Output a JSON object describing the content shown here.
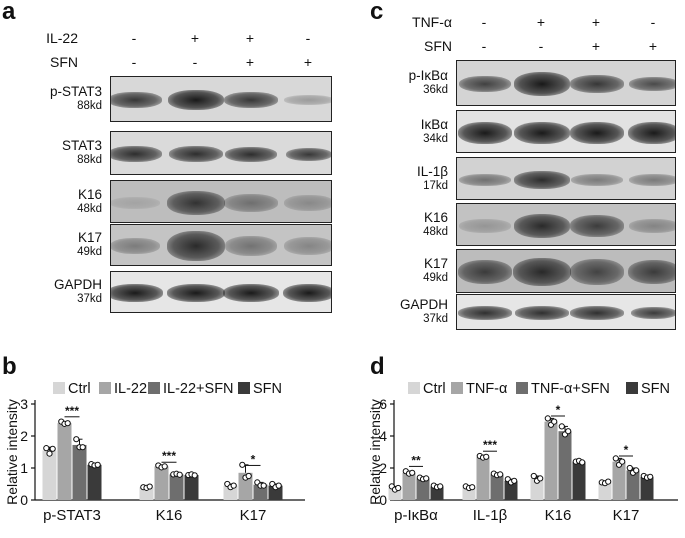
{
  "figure": {
    "panels": {
      "a": {
        "letter": "a",
        "treatments": [
          {
            "label": "IL-22",
            "signs": [
              "-",
              "+",
              "+",
              "-"
            ]
          },
          {
            "label": "SFN",
            "signs": [
              "-",
              "-",
              "+",
              "+"
            ]
          }
        ],
        "blots": [
          {
            "name": "p-STAT3",
            "kd": "88kd"
          },
          {
            "name": "STAT3",
            "kd": "88kd"
          },
          {
            "name": "K16",
            "kd": "48kd"
          },
          {
            "name": "K17",
            "kd": "49kd"
          },
          {
            "name": "GAPDH",
            "kd": "37kd"
          }
        ]
      },
      "c": {
        "letter": "c",
        "treatments": [
          {
            "label": "TNF-α",
            "signs": [
              "-",
              "+",
              "+",
              "-"
            ]
          },
          {
            "label": "SFN",
            "signs": [
              "-",
              "-",
              "+",
              "+"
            ]
          }
        ],
        "blots": [
          {
            "name": "p-IκBα",
            "kd": "36kd"
          },
          {
            "name": "IκBα",
            "kd": "34kd"
          },
          {
            "name": "IL-1β",
            "kd": "17kd"
          },
          {
            "name": "K16",
            "kd": "48kd"
          },
          {
            "name": "K17",
            "kd": "49kd"
          },
          {
            "name": "GAPDH",
            "kd": "37kd"
          }
        ]
      },
      "b": {
        "letter": "b"
      },
      "d": {
        "letter": "d"
      }
    },
    "colors": {
      "ctrl": "#d6d6d6",
      "treat": "#a6a6a6",
      "combo": "#6e6e6e",
      "sfn": "#3a3a3a"
    }
  },
  "chart_data": [
    {
      "panel": "b",
      "type": "bar",
      "ylabel": "Relative intensity",
      "ylim": [
        0,
        3
      ],
      "yticks": [
        "0",
        "1",
        "2",
        "3"
      ],
      "legend": [
        "Ctrl",
        "IL-22",
        "IL-22+SFN",
        "SFN"
      ],
      "legend_position": "top",
      "categories": [
        "p-STAT3",
        "K16",
        "K17"
      ],
      "series": [
        {
          "name": "Ctrl",
          "values": [
            1.55,
            0.4,
            0.45
          ]
        },
        {
          "name": "IL-22",
          "values": [
            2.4,
            1.05,
            0.85
          ]
        },
        {
          "name": "IL-22+SFN",
          "values": [
            1.72,
            0.8,
            0.48
          ]
        },
        {
          "name": "SFN",
          "values": [
            1.1,
            0.78,
            0.45
          ]
        }
      ],
      "points": [
        [
          [
            1.62,
            1.45,
            1.6
          ],
          [
            2.45,
            2.38,
            2.4
          ],
          [
            1.9,
            1.65,
            1.65
          ],
          [
            1.12,
            1.08,
            1.1
          ]
        ],
        [
          [
            0.4,
            0.38,
            0.42
          ],
          [
            1.08,
            1.02,
            1.05
          ],
          [
            0.8,
            0.82,
            0.79
          ],
          [
            0.78,
            0.8,
            0.77
          ]
        ],
        [
          [
            0.5,
            0.4,
            0.45
          ],
          [
            1.1,
            0.7,
            0.75
          ],
          [
            0.55,
            0.45,
            0.45
          ],
          [
            0.5,
            0.4,
            0.45
          ]
        ]
      ],
      "significance": [
        {
          "category": "p-STAT3",
          "label": "***",
          "y": 2.6
        },
        {
          "category": "K16",
          "label": "***",
          "y": 1.18
        },
        {
          "category": "K17",
          "label": "*",
          "y": 1.08
        }
      ]
    },
    {
      "panel": "d",
      "type": "bar",
      "ylabel": "Relative intensity",
      "ylim": [
        0,
        6
      ],
      "yticks": [
        "0",
        "2",
        "4",
        "6"
      ],
      "legend": [
        "Ctrl",
        "TNF-α",
        "TNF-α+SFN",
        "SFN"
      ],
      "legend_position": "top",
      "categories": [
        "p-IκBα",
        "IL-1β",
        "K16",
        "K17"
      ],
      "series": [
        {
          "name": "Ctrl",
          "values": [
            0.75,
            0.8,
            1.35,
            1.1
          ]
        },
        {
          "name": "TNF-α",
          "values": [
            1.7,
            2.7,
            4.9,
            2.4
          ]
        },
        {
          "name": "TNF-α+SFN",
          "values": [
            1.35,
            1.6,
            4.3,
            1.85
          ]
        },
        {
          "name": "SFN",
          "values": [
            0.85,
            1.2,
            2.4,
            1.45
          ]
        }
      ],
      "points": [
        [
          [
            0.85,
            0.65,
            0.75
          ],
          [
            1.8,
            1.65,
            1.7
          ],
          [
            1.4,
            1.3,
            1.35
          ],
          [
            0.9,
            0.8,
            0.85
          ]
        ],
        [
          [
            0.85,
            0.75,
            0.8
          ],
          [
            2.75,
            2.65,
            2.7
          ],
          [
            1.65,
            1.55,
            1.6
          ],
          [
            1.3,
            1.1,
            1.2
          ]
        ],
        [
          [
            1.5,
            1.2,
            1.35
          ],
          [
            5.1,
            4.7,
            4.9
          ],
          [
            4.6,
            4.1,
            4.3
          ],
          [
            2.4,
            2.45,
            2.35
          ]
        ],
        [
          [
            1.1,
            1.05,
            1.15
          ],
          [
            2.6,
            2.2,
            2.4
          ],
          [
            2.0,
            1.7,
            1.85
          ],
          [
            1.5,
            1.4,
            1.45
          ]
        ]
      ],
      "significance": [
        {
          "category": "p-IκBα",
          "label": "**",
          "y": 2.1
        },
        {
          "category": "IL-1β",
          "label": "***",
          "y": 3.05
        },
        {
          "category": "K16",
          "label": "*",
          "y": 5.25
        },
        {
          "category": "K17",
          "label": "*",
          "y": 2.75
        }
      ]
    }
  ]
}
